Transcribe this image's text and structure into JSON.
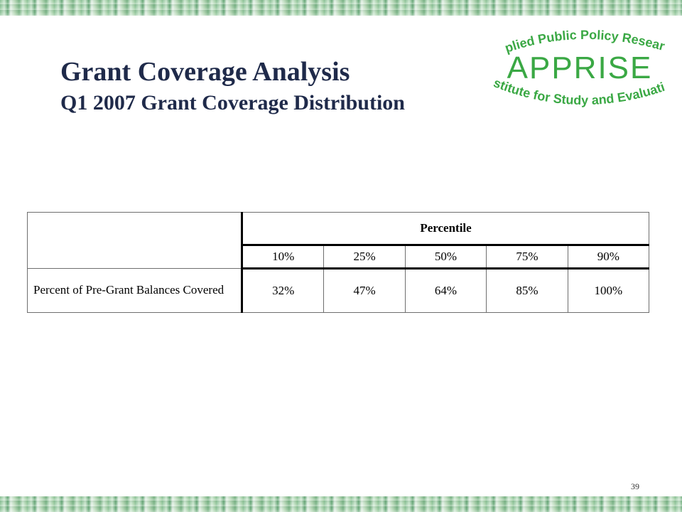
{
  "title": {
    "main": "Grant Coverage Analysis",
    "sub": "Q1 2007 Grant Coverage Distribution"
  },
  "logo": {
    "top_arc": "Applied Public Policy Research",
    "name": "APPRISE",
    "bottom_arc": "Institute for Study and Evaluation",
    "color": "#3aa844"
  },
  "table": {
    "group_header": "Percentile",
    "percentiles": [
      "10%",
      "25%",
      "50%",
      "75%",
      "90%"
    ],
    "row_label": "Percent of Pre-Grant Balances Covered",
    "values": [
      "32%",
      "47%",
      "64%",
      "85%",
      "100%"
    ]
  },
  "page_number": "39"
}
